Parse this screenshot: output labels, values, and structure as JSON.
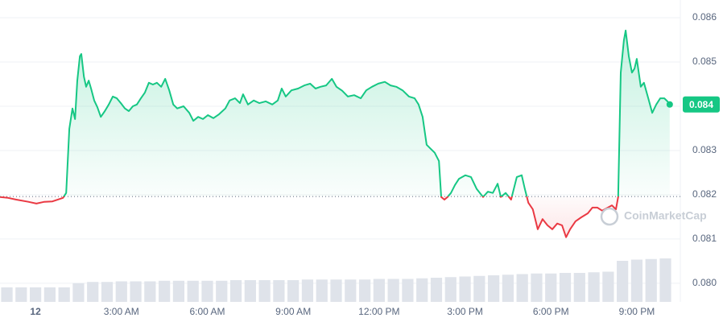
{
  "chart_data": {
    "type": "line",
    "x": [
      -1.24,
      -0.96,
      -0.67,
      -0.25,
      0.03,
      0.31,
      0.59,
      0.96,
      1.07,
      1.18,
      1.29,
      1.38,
      1.46,
      1.55,
      1.6,
      1.69,
      1.77,
      1.86,
      1.94,
      2.05,
      2.16,
      2.28,
      2.42,
      2.56,
      2.7,
      2.84,
      2.98,
      3.12,
      3.26,
      3.4,
      3.54,
      3.68,
      3.82,
      3.96,
      4.1,
      4.24,
      4.39,
      4.53,
      4.67,
      4.81,
      4.95,
      5.17,
      5.37,
      5.51,
      5.68,
      5.85,
      6.02,
      6.21,
      6.41,
      6.63,
      6.78,
      6.97,
      7.14,
      7.25,
      7.42,
      7.62,
      7.82,
      8.04,
      8.27,
      8.46,
      8.6,
      8.74,
      8.94,
      9.17,
      9.39,
      9.59,
      9.78,
      9.95,
      10.15,
      10.35,
      10.51,
      10.71,
      10.91,
      11.13,
      11.36,
      11.55,
      11.75,
      11.97,
      12.2,
      12.4,
      12.6,
      12.82,
      13.04,
      13.24,
      13.38,
      13.52,
      13.66,
      13.8,
      13.94,
      14.09,
      14.17,
      14.28,
      14.39,
      14.51,
      14.65,
      14.79,
      15.01,
      15.21,
      15.41,
      15.63,
      15.8,
      15.97,
      16.14,
      16.25,
      16.42,
      16.61,
      16.81,
      16.98,
      17.09,
      17.21,
      17.37,
      17.54,
      17.71,
      17.88,
      18.05,
      18.22,
      18.39,
      18.53,
      18.67,
      18.86,
      19.06,
      19.29,
      19.45,
      19.62,
      19.79,
      19.99,
      20.13,
      20.27,
      20.35,
      20.44,
      20.55,
      20.61,
      20.72,
      20.83,
      20.92,
      21.0,
      21.14,
      21.25,
      21.4,
      21.54,
      21.68,
      21.82,
      21.96,
      22.07,
      22.15
    ],
    "values": [
      0.08195,
      0.08193,
      0.08189,
      0.08184,
      0.0818,
      0.08184,
      0.08185,
      0.08193,
      0.08204,
      0.08349,
      0.08395,
      0.08371,
      0.08458,
      0.08513,
      0.08518,
      0.08467,
      0.08444,
      0.08458,
      0.0844,
      0.08413,
      0.08398,
      0.08376,
      0.08389,
      0.08404,
      0.08422,
      0.08418,
      0.08407,
      0.08395,
      0.08389,
      0.084,
      0.08404,
      0.08418,
      0.08431,
      0.08453,
      0.08449,
      0.08453,
      0.08444,
      0.08462,
      0.08436,
      0.08404,
      0.08395,
      0.084,
      0.08385,
      0.08367,
      0.08376,
      0.08371,
      0.0838,
      0.08373,
      0.08382,
      0.08395,
      0.08413,
      0.08418,
      0.08407,
      0.08427,
      0.08404,
      0.08413,
      0.08407,
      0.08411,
      0.08404,
      0.08413,
      0.0844,
      0.08422,
      0.08436,
      0.0844,
      0.08447,
      0.08451,
      0.0844,
      0.08444,
      0.08447,
      0.08462,
      0.08444,
      0.08435,
      0.08422,
      0.08425,
      0.08418,
      0.08436,
      0.08444,
      0.08451,
      0.08455,
      0.08447,
      0.08444,
      0.08436,
      0.08422,
      0.08418,
      0.08404,
      0.08376,
      0.08313,
      0.08304,
      0.08295,
      0.08276,
      0.08195,
      0.08189,
      0.08195,
      0.08204,
      0.08222,
      0.08236,
      0.08244,
      0.0824,
      0.08213,
      0.08195,
      0.08207,
      0.08204,
      0.08225,
      0.08195,
      0.08204,
      0.08189,
      0.0824,
      0.08244,
      0.08213,
      0.08182,
      0.08167,
      0.08122,
      0.08145,
      0.08131,
      0.08122,
      0.08135,
      0.08131,
      0.08104,
      0.08122,
      0.0814,
      0.08149,
      0.08158,
      0.08171,
      0.08171,
      0.08164,
      0.08171,
      0.08176,
      0.08167,
      0.08195,
      0.08476,
      0.08549,
      0.08571,
      0.08513,
      0.08476,
      0.08485,
      0.08507,
      0.08444,
      0.08453,
      0.08418,
      0.08385,
      0.08404,
      0.08418,
      0.08418,
      0.08411,
      0.08404
    ],
    "reference": 0.08196,
    "up_color": "#16c784",
    "down_color": "#ea3943",
    "volume": {
      "color": "#dfe3ea",
      "vlim": [
        0,
        100
      ],
      "x": [
        -1,
        -0.5,
        0,
        0.5,
        1,
        1.5,
        2,
        2.5,
        3,
        3.5,
        4,
        4.5,
        5,
        5.5,
        6,
        6.5,
        7,
        7.5,
        8,
        8.5,
        9,
        9.5,
        10,
        10.5,
        11,
        11.5,
        12,
        12.5,
        13,
        13.5,
        14,
        14.5,
        15,
        15.5,
        16,
        16.5,
        17,
        17.5,
        18,
        18.5,
        19,
        19.5,
        20,
        20.5,
        21,
        21.5,
        22
      ],
      "values": [
        24,
        24,
        24,
        24,
        24,
        31,
        33,
        33,
        34,
        34,
        34,
        35,
        35,
        35,
        35,
        35,
        36,
        36,
        36,
        36,
        36,
        37,
        37,
        37,
        37,
        37,
        38,
        38,
        38,
        39,
        40,
        41,
        42,
        43,
        44,
        45,
        46,
        47,
        47,
        48,
        48,
        49,
        50,
        68,
        70,
        71,
        72
      ]
    },
    "xlim": [
      -1.24,
      22.52
    ],
    "xticks": [
      {
        "value": 0,
        "label": "12"
      },
      {
        "value": 3,
        "label": "3:00 AM"
      },
      {
        "value": 6,
        "label": "6:00 AM"
      },
      {
        "value": 9,
        "label": "9:00 AM"
      },
      {
        "value": 12,
        "label": "12:00 PM"
      },
      {
        "value": 15,
        "label": "3:00 PM"
      },
      {
        "value": 18,
        "label": "6:00 PM"
      },
      {
        "value": 21,
        "label": "9:00 PM"
      }
    ],
    "ylim": [
      0.07958,
      0.0864
    ],
    "yticks": [
      {
        "value": 0.08,
        "label": "0.080"
      },
      0.081,
      0.082,
      0.083,
      0.084,
      0.085,
      0.086
    ],
    "grid": true,
    "last_price_label": "0.084",
    "watermark": "CoinMarketCap"
  }
}
